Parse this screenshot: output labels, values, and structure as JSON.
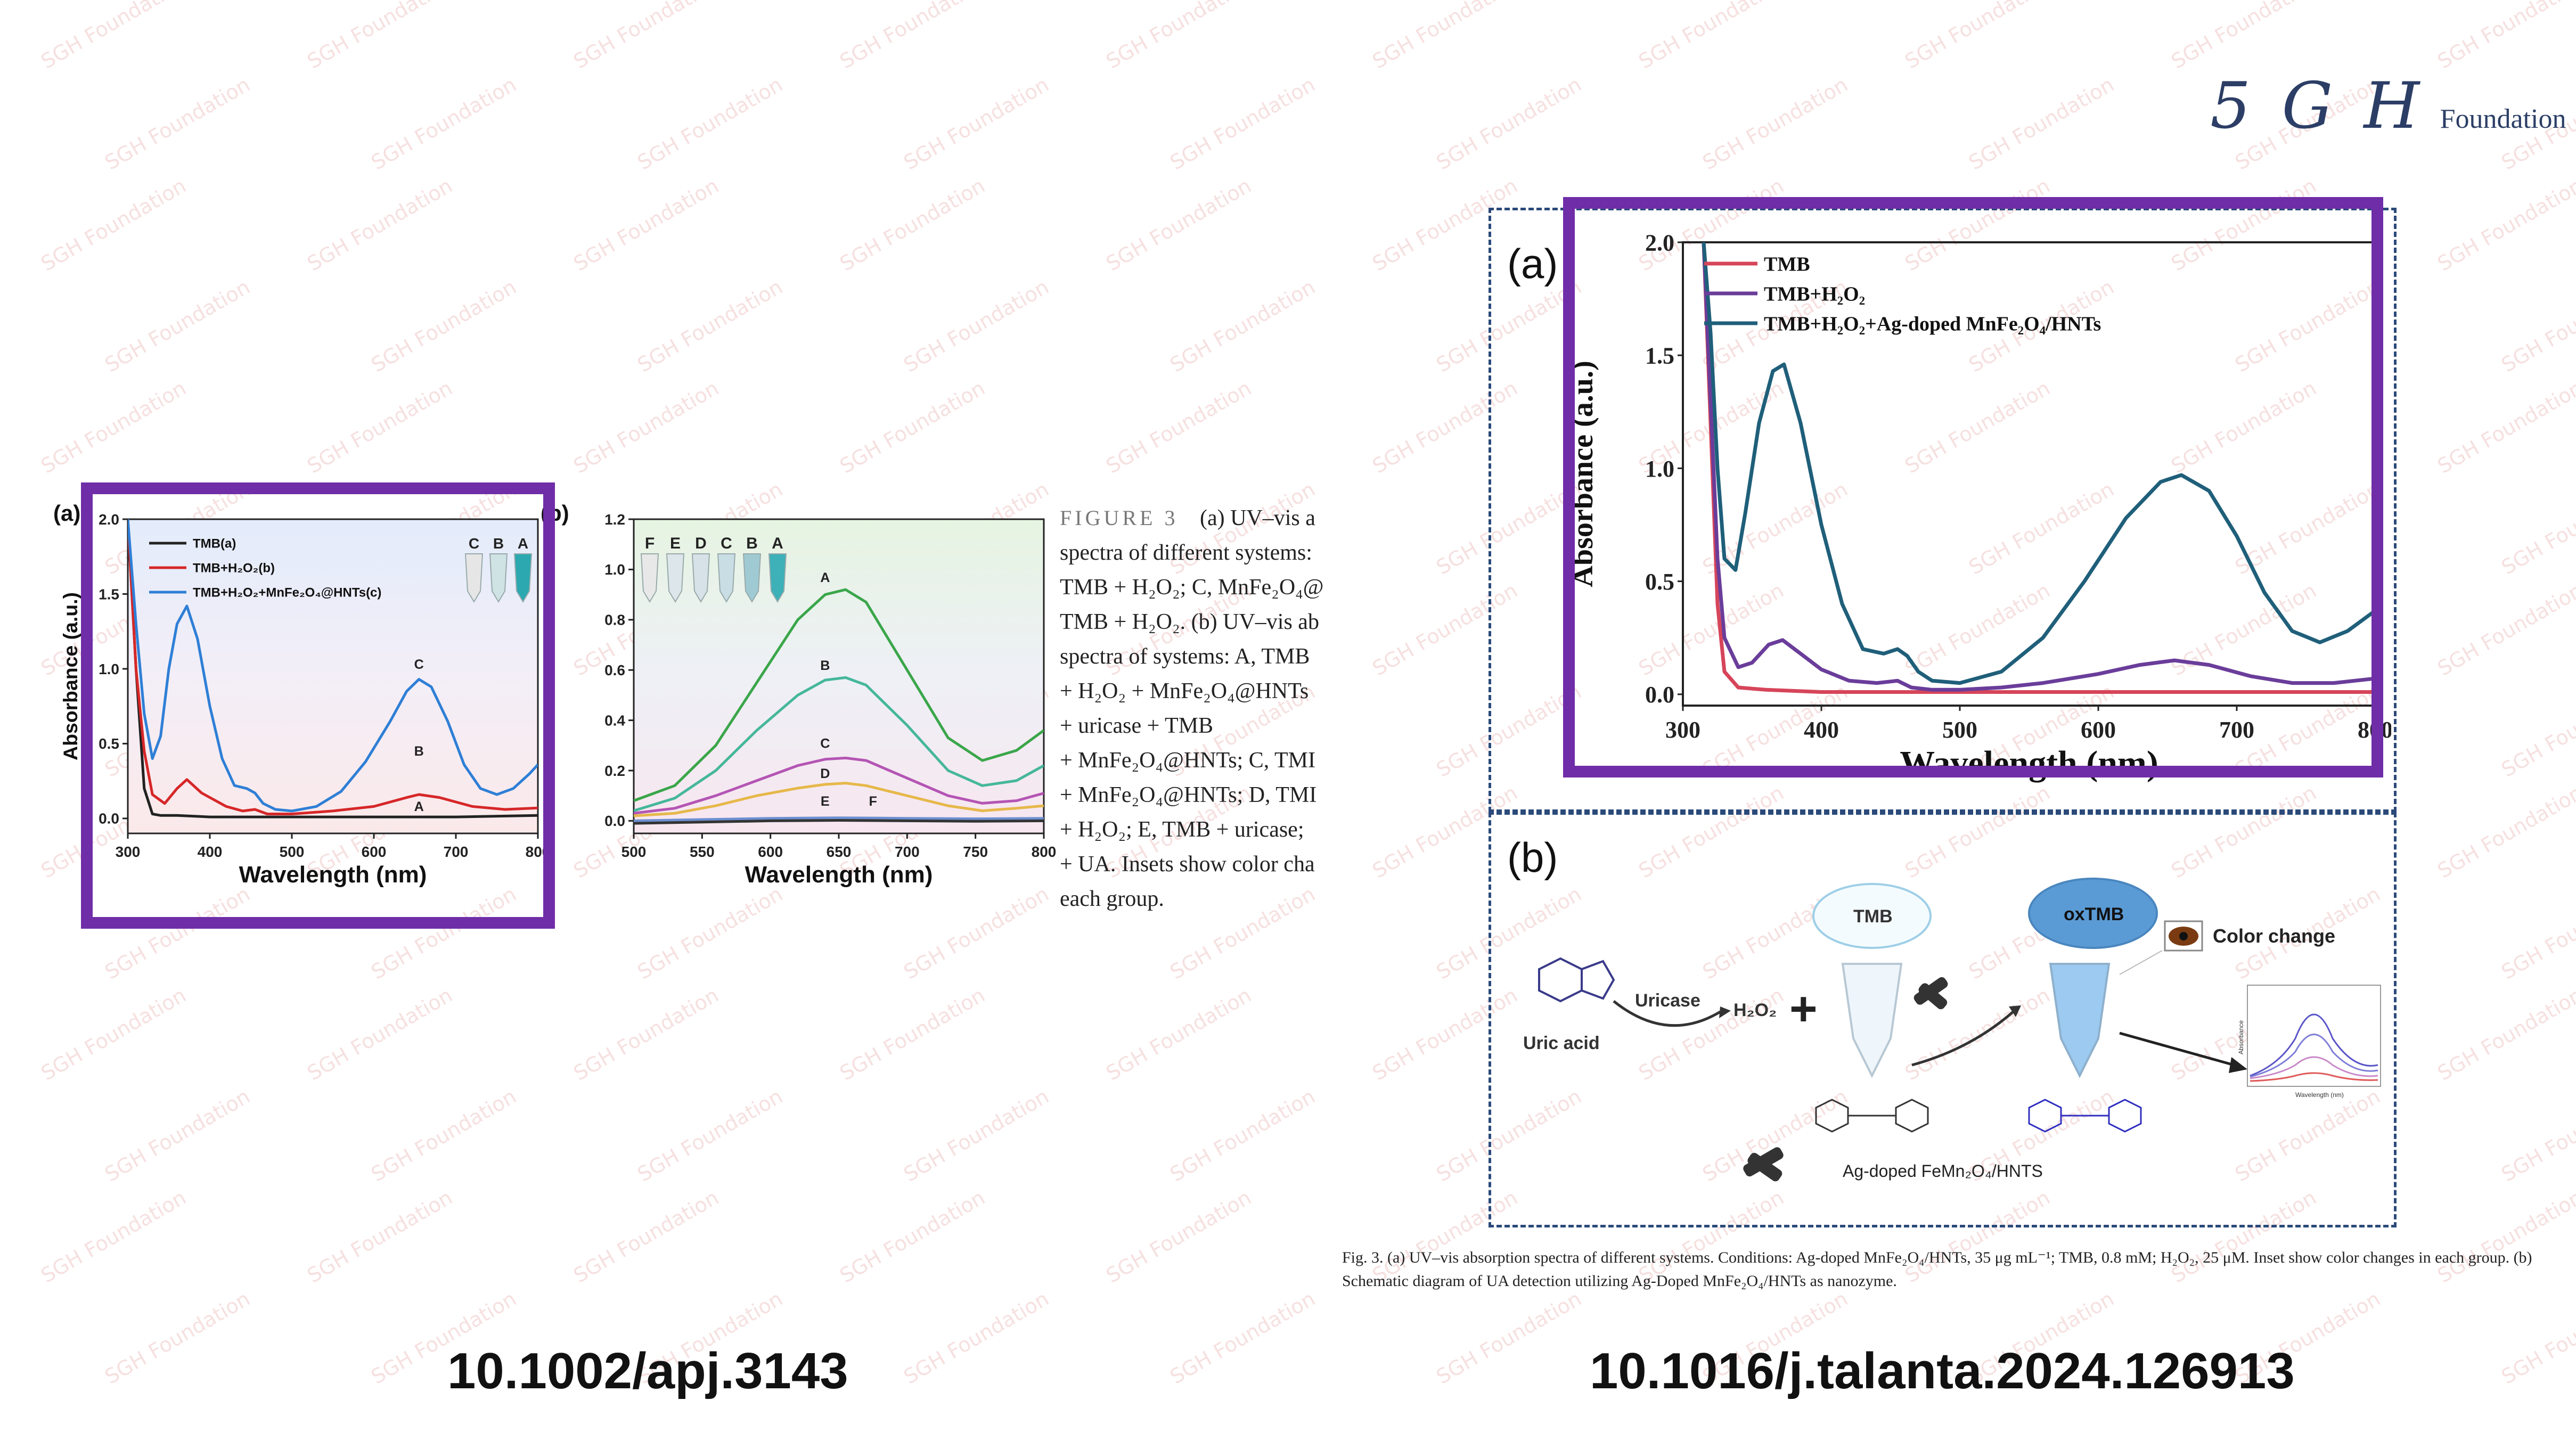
{
  "logo": {
    "mark": "5 G H",
    "sub": "Foundation"
  },
  "watermark": "SGH Foundation",
  "doi_left": "10.1002/apj.3143",
  "doi_right": "10.1016/j.talanta.2024.126913",
  "left_figure": {
    "panel_a_label": "(a)",
    "panel_b_label": "(b)",
    "caption": {
      "title": "FIGURE 3",
      "lines": [
        "(a) UV–vis a",
        "spectra of different systems:",
        "TMB + H₂O₂; C, MnFe₂O₄@",
        "TMB + H₂O₂. (b) UV–vis ab",
        "spectra of systems: A, TMB",
        "+ H₂O₂ + MnFe₂O₄@HNTs",
        "+ uricase + TMB",
        "+ MnFe₂O₄@HNTs; C, TMI",
        "+ MnFe₂O₄@HNTs; D, TMI",
        "+ H₂O₂; E, TMB + uricase;",
        "+ UA. Insets show color cha",
        "each group."
      ]
    }
  },
  "right_figure": {
    "panel_a_label": "(a)",
    "panel_b_label": "(b)",
    "scheme": {
      "uric_acid": "Uric acid",
      "uricase": "Uricase",
      "h2o2": "H₂O₂",
      "plus": "+",
      "tmb": "TMB",
      "oxtmb": "oxTMB",
      "color_change": "Color change",
      "nanozyme": "Ag-doped FeMn₂O₄/HNTS",
      "mini_xlabel": "Wavelength (nm)",
      "mini_ylabel": "Absorbance"
    },
    "caption": "Fig. 3. (a) UV–vis absorption spectra of different systems. Conditions: Ag-doped MnFe₂O₄/HNTs, 35 μg mL⁻¹; TMB, 0.8 mM; H₂O₂, 25 μM. Inset show color changes in each group. (b) Schematic diagram of UA detection utilizing Ag-Doped MnFe₂O₄/HNTs as nanozyme."
  },
  "chart_data": [
    {
      "id": "left-a",
      "type": "line",
      "xlabel": "Wavelength (nm)",
      "ylabel": "Absorbance (a.u.)",
      "xlim": [
        300,
        800
      ],
      "ylim": [
        -0.1,
        2.0
      ],
      "xticks": [
        300,
        400,
        500,
        600,
        700,
        800
      ],
      "yticks": [
        0.0,
        0.5,
        1.0,
        1.5,
        2.0
      ],
      "legend": [
        "TMB(a)",
        "TMB+H₂O₂(b)",
        "TMB+H₂O₂+MnFe₂O₄@HNTs(c)"
      ],
      "legend_placement": "top-left",
      "inset_labels": [
        "C",
        "B",
        "A"
      ],
      "annotations": [
        {
          "text": "C",
          "x": 655,
          "y": 1.0
        },
        {
          "text": "B",
          "x": 655,
          "y": 0.42
        },
        {
          "text": "A",
          "x": 655,
          "y": 0.05
        }
      ],
      "series": [
        {
          "name": "TMB(a)",
          "color": "#222222",
          "x": [
            300,
            310,
            320,
            330,
            340,
            360,
            400,
            500,
            600,
            700,
            800
          ],
          "y": [
            2.0,
            1.0,
            0.2,
            0.03,
            0.02,
            0.02,
            0.01,
            0.01,
            0.01,
            0.01,
            0.02
          ]
        },
        {
          "name": "TMB+H₂O₂(b)",
          "color": "#d62728",
          "x": [
            300,
            310,
            320,
            330,
            345,
            360,
            372,
            390,
            420,
            440,
            455,
            470,
            500,
            550,
            600,
            640,
            655,
            680,
            720,
            760,
            800
          ],
          "y": [
            2.0,
            1.0,
            0.45,
            0.16,
            0.1,
            0.2,
            0.26,
            0.17,
            0.08,
            0.05,
            0.06,
            0.03,
            0.03,
            0.05,
            0.08,
            0.14,
            0.16,
            0.14,
            0.08,
            0.06,
            0.07
          ]
        },
        {
          "name": "TMB+H₂O₂+MnFe₂O₄@HNTs(c)",
          "color": "#2e7fd6",
          "x": [
            300,
            310,
            320,
            330,
            340,
            350,
            360,
            372,
            385,
            400,
            415,
            430,
            445,
            455,
            465,
            480,
            500,
            530,
            560,
            590,
            620,
            640,
            655,
            670,
            690,
            710,
            730,
            750,
            770,
            790,
            800
          ],
          "y": [
            2.0,
            1.3,
            0.7,
            0.4,
            0.55,
            1.0,
            1.3,
            1.42,
            1.2,
            0.75,
            0.4,
            0.22,
            0.2,
            0.17,
            0.1,
            0.06,
            0.05,
            0.08,
            0.18,
            0.38,
            0.65,
            0.85,
            0.93,
            0.88,
            0.65,
            0.36,
            0.2,
            0.16,
            0.2,
            0.3,
            0.36
          ]
        }
      ]
    },
    {
      "id": "left-b",
      "type": "line",
      "xlabel": "Wavelength (nm)",
      "ylabel": "",
      "xlim": [
        500,
        800
      ],
      "ylim": [
        -0.05,
        1.2
      ],
      "xticks": [
        500,
        550,
        600,
        650,
        700,
        750,
        800
      ],
      "yticks": [
        0.0,
        0.2,
        0.4,
        0.6,
        0.8,
        1.0,
        1.2
      ],
      "inset_labels": [
        "F",
        "E",
        "D",
        "C",
        "B",
        "A"
      ],
      "annotations": [
        {
          "text": "A",
          "x": 640,
          "y": 0.95
        },
        {
          "text": "B",
          "x": 640,
          "y": 0.6
        },
        {
          "text": "C",
          "x": 640,
          "y": 0.29
        },
        {
          "text": "D",
          "x": 640,
          "y": 0.17
        },
        {
          "text": "E",
          "x": 640,
          "y": 0.06
        },
        {
          "text": "F",
          "x": 675,
          "y": 0.06
        }
      ],
      "series": [
        {
          "name": "A",
          "color": "#3aa64a",
          "x": [
            500,
            530,
            560,
            590,
            620,
            640,
            655,
            670,
            700,
            730,
            755,
            780,
            800
          ],
          "y": [
            0.08,
            0.14,
            0.3,
            0.55,
            0.8,
            0.9,
            0.92,
            0.87,
            0.6,
            0.33,
            0.24,
            0.28,
            0.36
          ]
        },
        {
          "name": "B",
          "color": "#45b79a",
          "x": [
            500,
            530,
            560,
            590,
            620,
            640,
            655,
            670,
            700,
            730,
            755,
            780,
            800
          ],
          "y": [
            0.04,
            0.09,
            0.2,
            0.36,
            0.5,
            0.56,
            0.57,
            0.54,
            0.38,
            0.2,
            0.14,
            0.16,
            0.22
          ]
        },
        {
          "name": "C",
          "color": "#b455b4",
          "x": [
            500,
            530,
            560,
            590,
            620,
            640,
            655,
            670,
            700,
            730,
            755,
            780,
            800
          ],
          "y": [
            0.03,
            0.05,
            0.1,
            0.16,
            0.22,
            0.245,
            0.25,
            0.24,
            0.17,
            0.1,
            0.07,
            0.08,
            0.11
          ]
        },
        {
          "name": "D",
          "color": "#e6b84a",
          "x": [
            500,
            530,
            560,
            590,
            620,
            640,
            655,
            670,
            700,
            730,
            755,
            780,
            800
          ],
          "y": [
            0.02,
            0.03,
            0.06,
            0.1,
            0.13,
            0.145,
            0.15,
            0.14,
            0.1,
            0.06,
            0.04,
            0.05,
            0.06
          ]
        },
        {
          "name": "E",
          "color": "#6d8fd0",
          "x": [
            500,
            550,
            600,
            650,
            700,
            750,
            800
          ],
          "y": [
            0.0,
            0.005,
            0.01,
            0.012,
            0.01,
            0.008,
            0.01
          ]
        },
        {
          "name": "F",
          "color": "#333333",
          "x": [
            500,
            550,
            600,
            650,
            700,
            750,
            800
          ],
          "y": [
            -0.01,
            -0.005,
            0.0,
            0.002,
            0.0,
            -0.002,
            0.0
          ]
        }
      ]
    },
    {
      "id": "right-a",
      "type": "line",
      "xlabel": "Wavelength (nm)",
      "ylabel": "Absorbance (a.u.)",
      "xlim": [
        300,
        800
      ],
      "ylim": [
        -0.05,
        2.0
      ],
      "xticks": [
        300,
        400,
        500,
        600,
        700,
        800
      ],
      "yticks": [
        0.0,
        0.5,
        1.0,
        1.5,
        2.0
      ],
      "legend": [
        "TMB",
        "TMB+H₂O₂",
        "TMB+H₂O₂+Ag-doped MnFe₂O₄/HNTs"
      ],
      "legend_placement": "top-left",
      "series": [
        {
          "name": "TMB",
          "color": "#d6455a",
          "x": [
            315,
            320,
            325,
            330,
            340,
            360,
            400,
            500,
            600,
            700,
            800
          ],
          "y": [
            2.0,
            1.2,
            0.4,
            0.1,
            0.03,
            0.02,
            0.01,
            0.01,
            0.01,
            0.01,
            0.01
          ]
        },
        {
          "name": "TMB+H₂O₂",
          "color": "#6a3d9a",
          "x": [
            315,
            320,
            325,
            330,
            340,
            350,
            362,
            372,
            385,
            400,
            420,
            440,
            455,
            465,
            480,
            500,
            530,
            560,
            600,
            630,
            655,
            680,
            710,
            740,
            770,
            800
          ],
          "y": [
            2.0,
            1.3,
            0.6,
            0.25,
            0.12,
            0.14,
            0.22,
            0.24,
            0.18,
            0.11,
            0.06,
            0.05,
            0.06,
            0.03,
            0.02,
            0.02,
            0.03,
            0.05,
            0.09,
            0.13,
            0.15,
            0.13,
            0.08,
            0.05,
            0.05,
            0.07
          ]
        },
        {
          "name": "TMB+H₂O₂+Ag-doped MnFe₂O₄/HNTs",
          "color": "#1f5f7a",
          "x": [
            315,
            320,
            325,
            330,
            338,
            345,
            355,
            365,
            373,
            385,
            400,
            415,
            430,
            445,
            455,
            462,
            470,
            480,
            500,
            530,
            560,
            590,
            620,
            645,
            660,
            680,
            700,
            720,
            740,
            760,
            780,
            800
          ],
          "y": [
            2.0,
            1.6,
            1.0,
            0.6,
            0.55,
            0.8,
            1.2,
            1.43,
            1.46,
            1.2,
            0.75,
            0.4,
            0.2,
            0.18,
            0.2,
            0.17,
            0.1,
            0.06,
            0.05,
            0.1,
            0.25,
            0.5,
            0.78,
            0.94,
            0.97,
            0.9,
            0.7,
            0.45,
            0.28,
            0.23,
            0.28,
            0.37
          ]
        }
      ]
    }
  ]
}
